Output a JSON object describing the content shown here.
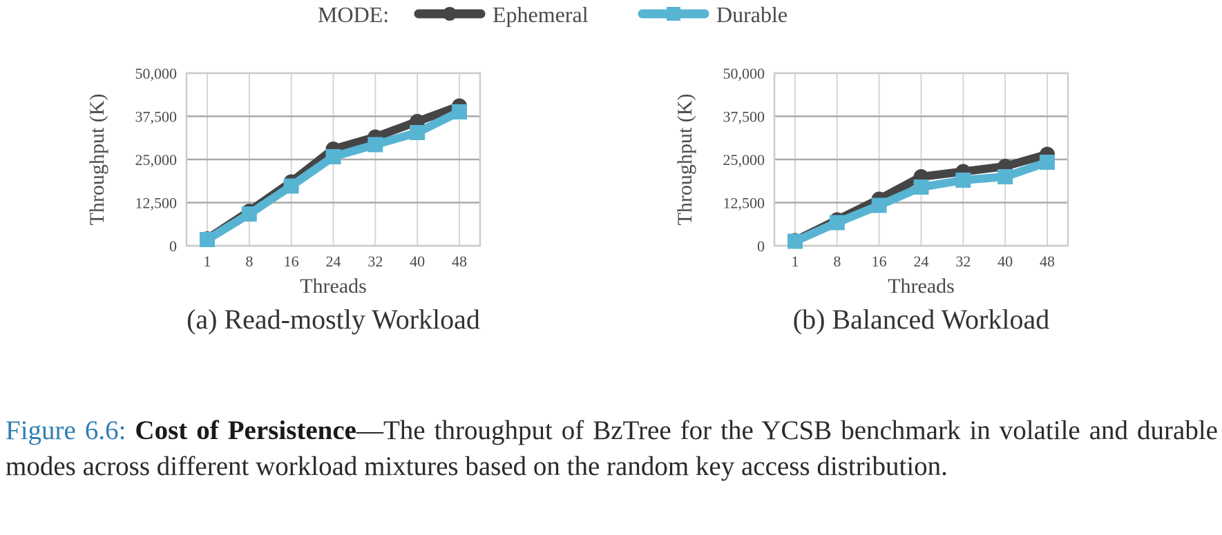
{
  "legend": {
    "title": "MODE:",
    "entries": [
      {
        "name": "Ephemeral",
        "color": "#454545",
        "marker": "circle"
      },
      {
        "name": "Durable",
        "color": "#58b4d3",
        "marker": "square"
      }
    ]
  },
  "chart_data": [
    {
      "type": "line",
      "title": "(a) Read-mostly Workload",
      "xlabel": "Threads",
      "ylabel": "Throughput (K)",
      "categories": [
        "1",
        "8",
        "16",
        "24",
        "32",
        "40",
        "48"
      ],
      "y_ticks": [
        "0",
        "12,500",
        "25,000",
        "37,500",
        "50,000"
      ],
      "ylim": [
        0,
        50000
      ],
      "grid": "on",
      "series": [
        {
          "name": "Ephemeral",
          "values": [
            2000,
            10000,
            18500,
            28000,
            31500,
            36000,
            40500
          ]
        },
        {
          "name": "Durable",
          "values": [
            1800,
            9200,
            17300,
            25800,
            29300,
            32800,
            38800
          ]
        }
      ]
    },
    {
      "type": "line",
      "title": "(b) Balanced Workload",
      "xlabel": "Threads",
      "ylabel": "Throughput (K)",
      "categories": [
        "1",
        "8",
        "16",
        "24",
        "32",
        "40",
        "48"
      ],
      "y_ticks": [
        "0",
        "12,500",
        "25,000",
        "37,500",
        "50,000"
      ],
      "ylim": [
        0,
        50000
      ],
      "grid": "on",
      "series": [
        {
          "name": "Ephemeral",
          "values": [
            1500,
            7500,
            13500,
            20000,
            21500,
            23000,
            26500
          ]
        },
        {
          "name": "Durable",
          "values": [
            1300,
            6700,
            11700,
            17000,
            19000,
            20000,
            24200
          ]
        }
      ]
    }
  ],
  "caption": {
    "label": "Figure 6.6:",
    "title": "Cost of Persistence",
    "text": "—The throughput of BzTree for the YCSB benchmark in volatile and durable modes across different workload mixtures based on the random key access distribution."
  }
}
